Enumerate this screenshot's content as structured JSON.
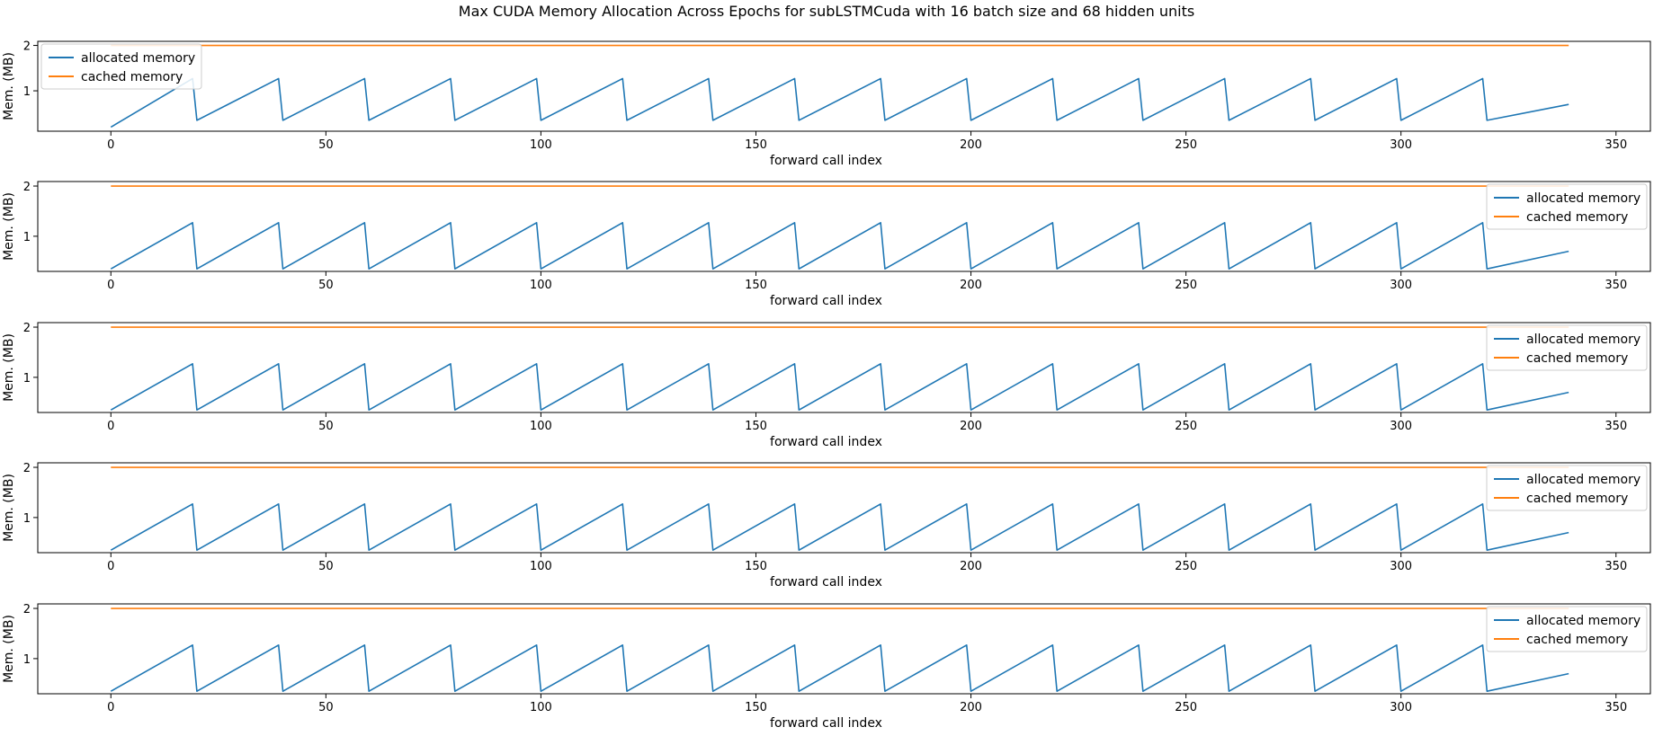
{
  "figure": {
    "title": "Max CUDA Memory Allocation Across Epochs for subLSTMCuda with 16 batch size and 68 hidden units"
  },
  "chart_data": [
    {
      "type": "line",
      "xlabel": "forward call index",
      "ylabel": "Mem. (MB)",
      "xlim": [
        -17,
        358
      ],
      "ylim": [
        0.11,
        2.09
      ],
      "xticks": [
        "0",
        "50",
        "100",
        "150",
        "200",
        "250",
        "300",
        "350"
      ],
      "yticks": [
        "1",
        "2"
      ],
      "legend_position": "upper-left",
      "series": [
        {
          "name": "allocated memory",
          "color": "#1f77b4",
          "start": 0.2,
          "low": 0.35,
          "peak": 1.27,
          "period": 20,
          "last_x": 339,
          "last_y": 0.7
        },
        {
          "name": "cached memory",
          "color": "#ff7f0e",
          "y": 2.0,
          "x_range": [
            0,
            339
          ]
        }
      ]
    },
    {
      "type": "line",
      "xlabel": "forward call index",
      "ylabel": "Mem. (MB)",
      "xlim": [
        -17,
        358
      ],
      "ylim": [
        0.3,
        2.09
      ],
      "xticks": [
        "0",
        "50",
        "100",
        "150",
        "200",
        "250",
        "300",
        "350"
      ],
      "yticks": [
        "1",
        "2"
      ],
      "legend_position": "upper-right",
      "series": [
        {
          "name": "allocated memory",
          "color": "#1f77b4",
          "start": 0.35,
          "low": 0.35,
          "peak": 1.27,
          "period": 20,
          "last_x": 339,
          "last_y": 0.7
        },
        {
          "name": "cached memory",
          "color": "#ff7f0e",
          "y": 2.0,
          "x_range": [
            0,
            339
          ]
        }
      ]
    },
    {
      "type": "line",
      "xlabel": "forward call index",
      "ylabel": "Mem. (MB)",
      "xlim": [
        -17,
        358
      ],
      "ylim": [
        0.3,
        2.09
      ],
      "xticks": [
        "0",
        "50",
        "100",
        "150",
        "200",
        "250",
        "300",
        "350"
      ],
      "yticks": [
        "1",
        "2"
      ],
      "legend_position": "upper-right",
      "series": [
        {
          "name": "allocated memory",
          "color": "#1f77b4",
          "start": 0.35,
          "low": 0.35,
          "peak": 1.27,
          "period": 20,
          "last_x": 339,
          "last_y": 0.7
        },
        {
          "name": "cached memory",
          "color": "#ff7f0e",
          "y": 2.0,
          "x_range": [
            0,
            339
          ]
        }
      ]
    },
    {
      "type": "line",
      "xlabel": "forward call index",
      "ylabel": "Mem. (MB)",
      "xlim": [
        -17,
        358
      ],
      "ylim": [
        0.3,
        2.09
      ],
      "xticks": [
        "0",
        "50",
        "100",
        "150",
        "200",
        "250",
        "300",
        "350"
      ],
      "yticks": [
        "1",
        "2"
      ],
      "legend_position": "upper-right",
      "series": [
        {
          "name": "allocated memory",
          "color": "#1f77b4",
          "start": 0.35,
          "low": 0.35,
          "peak": 1.27,
          "period": 20,
          "last_x": 339,
          "last_y": 0.7
        },
        {
          "name": "cached memory",
          "color": "#ff7f0e",
          "y": 2.0,
          "x_range": [
            0,
            339
          ]
        }
      ]
    },
    {
      "type": "line",
      "xlabel": "forward call index",
      "ylabel": "Mem. (MB)",
      "xlim": [
        -17,
        358
      ],
      "ylim": [
        0.3,
        2.09
      ],
      "xticks": [
        "0",
        "50",
        "100",
        "150",
        "200",
        "250",
        "300",
        "350"
      ],
      "yticks": [
        "1",
        "2"
      ],
      "legend_position": "upper-right",
      "series": [
        {
          "name": "allocated memory",
          "color": "#1f77b4",
          "start": 0.35,
          "low": 0.35,
          "peak": 1.27,
          "period": 20,
          "last_x": 339,
          "last_y": 0.7
        },
        {
          "name": "cached memory",
          "color": "#ff7f0e",
          "y": 2.0,
          "x_range": [
            0,
            339
          ]
        }
      ]
    }
  ]
}
